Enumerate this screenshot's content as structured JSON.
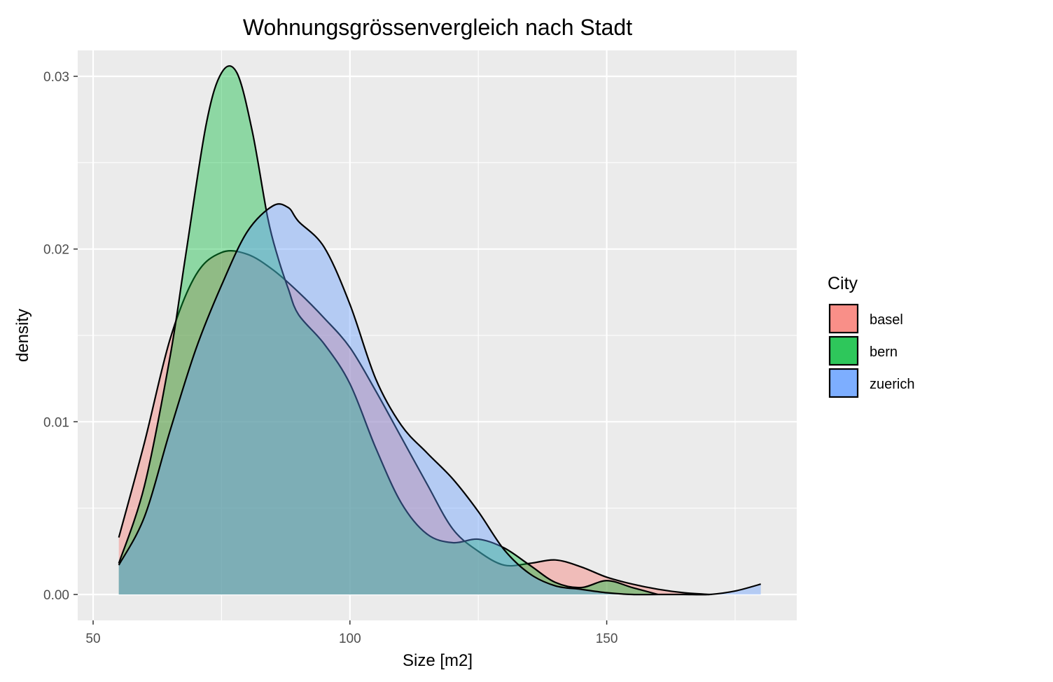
{
  "chart_data": {
    "type": "area",
    "title": "Wohnungsgrössenvergleich nach Stadt",
    "xlabel": "Size [m2]",
    "ylabel": "density",
    "xlim": [
      47,
      187
    ],
    "ylim": [
      -0.0015,
      0.0315
    ],
    "x_ticks": [
      50,
      100,
      150
    ],
    "y_ticks": [
      0.0,
      0.01,
      0.02,
      0.03
    ],
    "x_tick_labels": [
      "50",
      "100",
      "150"
    ],
    "y_tick_labels": [
      "0.00",
      "0.01",
      "0.02",
      "0.03"
    ],
    "grid": true,
    "legend": {
      "title": "City",
      "placement": "right",
      "entries": [
        "basel",
        "bern",
        "zuerich"
      ]
    },
    "series": [
      {
        "name": "basel",
        "color": "#F8766D",
        "x": [
          55,
          60,
          65,
          70,
          75,
          80,
          85,
          90,
          95,
          100,
          105,
          110,
          115,
          120,
          125,
          130,
          135,
          140,
          145,
          150,
          155,
          160,
          165,
          170
        ],
        "values": [
          0.0033,
          0.0088,
          0.0148,
          0.0185,
          0.0198,
          0.0197,
          0.0188,
          0.0175,
          0.016,
          0.0143,
          0.0118,
          0.0091,
          0.0064,
          0.0038,
          0.0025,
          0.0017,
          0.0018,
          0.002,
          0.0016,
          0.001,
          0.0006,
          0.0003,
          0.0001,
          0.0
        ]
      },
      {
        "name": "bern",
        "color": "#00BA38",
        "x": [
          55,
          60,
          65,
          68,
          72,
          75,
          78,
          81,
          84,
          86,
          88,
          90,
          95,
          100,
          105,
          110,
          115,
          120,
          125,
          130,
          135,
          140,
          145,
          150,
          155,
          160
        ],
        "values": [
          0.0018,
          0.0063,
          0.0138,
          0.0196,
          0.0272,
          0.0302,
          0.0302,
          0.0268,
          0.0218,
          0.0195,
          0.0177,
          0.0162,
          0.0145,
          0.0122,
          0.0085,
          0.0053,
          0.0035,
          0.003,
          0.0032,
          0.0027,
          0.0017,
          0.0007,
          0.0004,
          0.0008,
          0.0004,
          0.0
        ]
      },
      {
        "name": "zuerich",
        "color": "#619CFF",
        "x": [
          55,
          60,
          65,
          70,
          75,
          80,
          85,
          88,
          90,
          95,
          100,
          105,
          110,
          115,
          120,
          125,
          130,
          135,
          140,
          145,
          150,
          155,
          160,
          165,
          170,
          175,
          180
        ],
        "values": [
          0.0017,
          0.0045,
          0.0095,
          0.0142,
          0.0179,
          0.021,
          0.0225,
          0.0224,
          0.0216,
          0.0201,
          0.0168,
          0.0125,
          0.0098,
          0.0082,
          0.0067,
          0.0048,
          0.0026,
          0.0012,
          0.0005,
          0.0003,
          0.0001,
          0.0,
          0.0,
          0.0,
          0.0,
          0.0002,
          0.0006
        ]
      }
    ]
  }
}
